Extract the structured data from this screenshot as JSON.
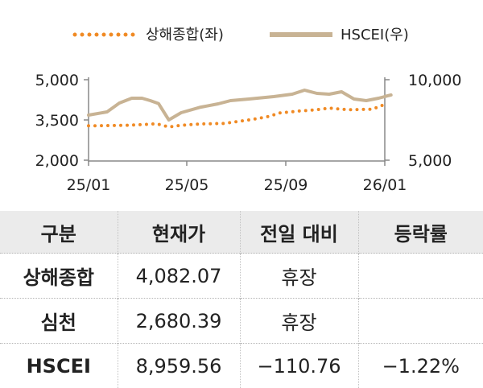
{
  "chart_data": {
    "type": "line",
    "title": "",
    "legend": {
      "placement": "top-center",
      "entries": [
        {
          "label": "상해종합(좌)",
          "color": "#f08a24",
          "style": "dotted",
          "axis": "left"
        },
        {
          "label": "HSCEI(우)",
          "color": "#c8b394",
          "style": "solid",
          "axis": "right"
        }
      ]
    },
    "left_axis": {
      "ylim": [
        2000,
        5000
      ],
      "ticks": [
        "2,000",
        "3,500",
        "5,000"
      ]
    },
    "right_axis": {
      "ylim": [
        5000,
        10000
      ],
      "ticks": [
        "5,000",
        "10,000"
      ]
    },
    "x_axis": {
      "range": [
        "25/01",
        "26/01"
      ],
      "ticks": [
        "25/01",
        "25/05",
        "25/09",
        "26/01"
      ]
    },
    "grid": false,
    "series": [
      {
        "name": "상해종합(좌)",
        "axis": "left",
        "dates": [
          "25/01",
          "25/02",
          "25/03",
          "25/03",
          "25/04",
          "25/04",
          "25/05",
          "25/06",
          "25/07",
          "25/08",
          "25/08",
          "25/09",
          "25/10",
          "25/10",
          "25/11",
          "25/12",
          "26/01"
        ],
        "values": [
          3280,
          3300,
          3330,
          3360,
          3240,
          3300,
          3350,
          3370,
          3500,
          3620,
          3760,
          3830,
          3880,
          3940,
          3880,
          3900,
          4082
        ]
      },
      {
        "name": "HSCEI(우)",
        "axis": "right",
        "dates": [
          "25/01",
          "25/01",
          "25/02",
          "25/02",
          "25/03",
          "25/03",
          "25/03",
          "25/04",
          "25/04",
          "25/05",
          "25/06",
          "25/06",
          "25/07",
          "25/08",
          "25/09",
          "25/09",
          "25/10",
          "25/10",
          "25/11",
          "25/11",
          "25/12",
          "25/12",
          "26/01",
          "26/01"
        ],
        "values": [
          7800,
          8000,
          8550,
          8850,
          8850,
          8700,
          8520,
          7500,
          7950,
          8280,
          8500,
          8700,
          8800,
          8950,
          9100,
          9350,
          9150,
          9100,
          9250,
          8800,
          8700,
          8850,
          9050,
          8960
        ]
      }
    ]
  },
  "table": {
    "headers": [
      "구분",
      "현재가",
      "전일 대비",
      "등락률"
    ],
    "rows": [
      {
        "name": "상해종합",
        "price": "4,082.07",
        "change": "휴장",
        "rate": ""
      },
      {
        "name": "심천",
        "price": "2,680.39",
        "change": "휴장",
        "rate": ""
      },
      {
        "name": "HSCEI",
        "price": "8,959.56",
        "change": "−110.76",
        "rate": "−1.22%"
      }
    ]
  }
}
